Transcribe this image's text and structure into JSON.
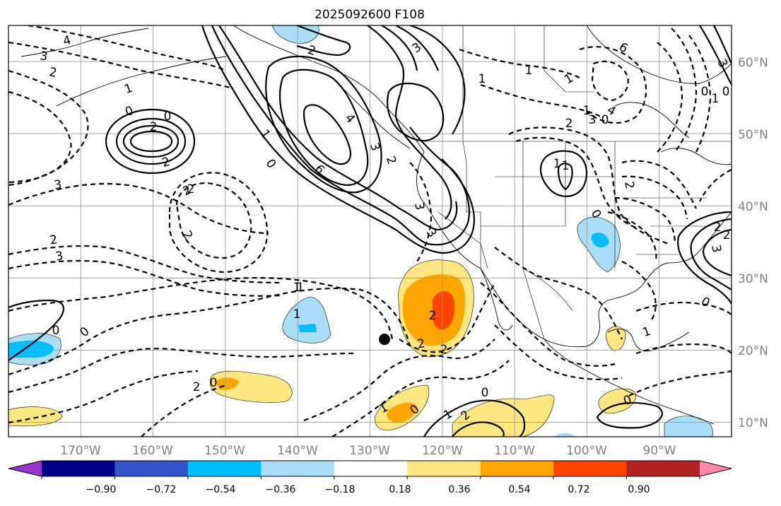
{
  "title": "2025092600 F108",
  "lon_labels": [
    "170°W",
    "160°W",
    "150°W",
    "140°W",
    "130°W",
    "120°W",
    "110°W",
    "100°W",
    "90°W"
  ],
  "lat_labels": [
    "60°N",
    "50°N",
    "40°N",
    "30°N",
    "20°N",
    "10°N"
  ],
  "colorbar": {
    "tick_labels": [
      "−0.90",
      "−0.72",
      "−0.54",
      "−0.36",
      "−0.18",
      "0.18",
      "0.36",
      "0.54",
      "0.72",
      "0.90"
    ],
    "colors": [
      "#9933cc",
      "#00008b",
      "#3355cc",
      "#00bfff",
      "#aaddf8",
      "#ffffff",
      "#ffe680",
      "#ffa500",
      "#ff4400",
      "#b22222",
      "#ff88aa"
    ]
  },
  "contour_labels": [
    "4",
    "3",
    "2",
    "1",
    "0",
    "2",
    "2",
    "3",
    "0",
    "2",
    "2",
    "1",
    "2",
    "3",
    "2",
    "1",
    "0",
    "3",
    "4",
    "6",
    "3",
    "2",
    "3",
    "1",
    "6",
    "0",
    "1",
    "0",
    "3",
    "1",
    "4",
    "3",
    "2",
    "2",
    "1",
    "0",
    "2",
    "0",
    "3",
    "2",
    "1",
    "2",
    "2",
    "1",
    "0",
    "0",
    "0",
    "3",
    "2",
    "2",
    "1",
    "1",
    "0",
    "2",
    "0",
    "0",
    "1",
    "1",
    "1",
    "0",
    "2",
    "1"
  ],
  "chart_data": {
    "type": "map",
    "title": "2025092600 F108",
    "lon_range_deg": [
      -180,
      -80
    ],
    "lat_range_deg": [
      8,
      65
    ],
    "lon_ticks": [
      -170,
      -160,
      -150,
      -140,
      -130,
      -120,
      -110,
      -100,
      -90
    ],
    "lat_ticks": [
      10,
      20,
      30,
      40,
      50,
      60
    ],
    "colorbar_levels": [
      -0.9,
      -0.72,
      -0.54,
      -0.36,
      -0.18,
      0.18,
      0.36,
      0.54,
      0.72,
      0.9
    ],
    "colorbar_extend": "both",
    "grid": true,
    "marker": {
      "lon": -128,
      "lat": 21.5
    }
  }
}
